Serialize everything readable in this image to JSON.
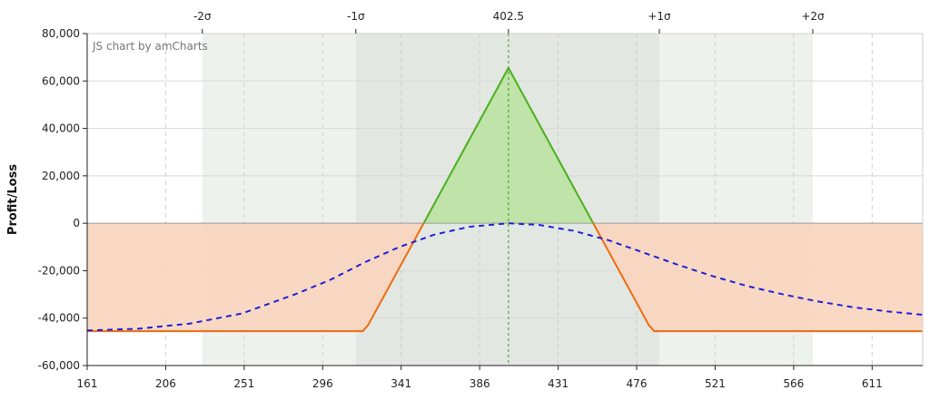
{
  "chart_data": {
    "type": "line",
    "credit": "JS chart by amCharts",
    "ylabel": "Profit/Loss",
    "xlim": [
      161,
      640
    ],
    "ylim": [
      -60000,
      80000
    ],
    "x_ticks": [
      161,
      206,
      251,
      296,
      341,
      386,
      431,
      476,
      521,
      566,
      611
    ],
    "x_tick_labels": [
      "161",
      "206",
      "251",
      "296",
      "341",
      "386",
      "431",
      "476",
      "521",
      "566",
      "611"
    ],
    "y_ticks": [
      -60000,
      -40000,
      -20000,
      0,
      20000,
      40000,
      60000,
      80000
    ],
    "y_tick_labels": [
      "-60,000",
      "-40,000",
      "-20,000",
      "0",
      "20,000",
      "40,000",
      "60,000",
      "80,000"
    ],
    "top_axis": [
      {
        "label": "-2σ",
        "x": 227
      },
      {
        "label": "-1σ",
        "x": 315
      },
      {
        "label": "402.5",
        "x": 402.5
      },
      {
        "label": "+1σ",
        "x": 489
      },
      {
        "label": "+2σ",
        "x": 577
      }
    ],
    "bands": [
      {
        "from": 227,
        "to": 577,
        "name": "2-sigma",
        "color": "#eef2ee"
      },
      {
        "from": 315,
        "to": 489,
        "name": "1-sigma",
        "color": "#e2e7e2"
      }
    ],
    "series": [
      {
        "kind": "expiration",
        "style": "solid",
        "color_up": "#4caf1e",
        "color_down": "#ee6b11",
        "fill_profit": "#bfe3a8",
        "fill_loss": "#f9d5be",
        "x": [
          161,
          319,
          322,
          402.5,
          483,
          486,
          640
        ],
        "y": [
          -45500,
          -45500,
          -43000,
          65500,
          -43000,
          -45500,
          -45500
        ]
      },
      {
        "kind": "current",
        "style": "dashed",
        "color": "#1f1fd6",
        "x": [
          161,
          190,
          220,
          250,
          280,
          300,
          320,
          340,
          360,
          380,
          402.5,
          420,
          440,
          460,
          480,
          500,
          520,
          540,
          560,
          580,
          600,
          620,
          640
        ],
        "y": [
          -45200,
          -44500,
          -42300,
          -38000,
          -30000,
          -24000,
          -16500,
          -10000,
          -4800,
          -1500,
          0,
          -700,
          -3200,
          -7200,
          -12400,
          -17600,
          -22400,
          -26600,
          -30000,
          -33000,
          -35400,
          -37200,
          -38600
        ]
      }
    ],
    "markers": [
      {
        "x": 402.5,
        "style": "dotted",
        "color": "#3a9a1e"
      }
    ],
    "grid": true
  }
}
